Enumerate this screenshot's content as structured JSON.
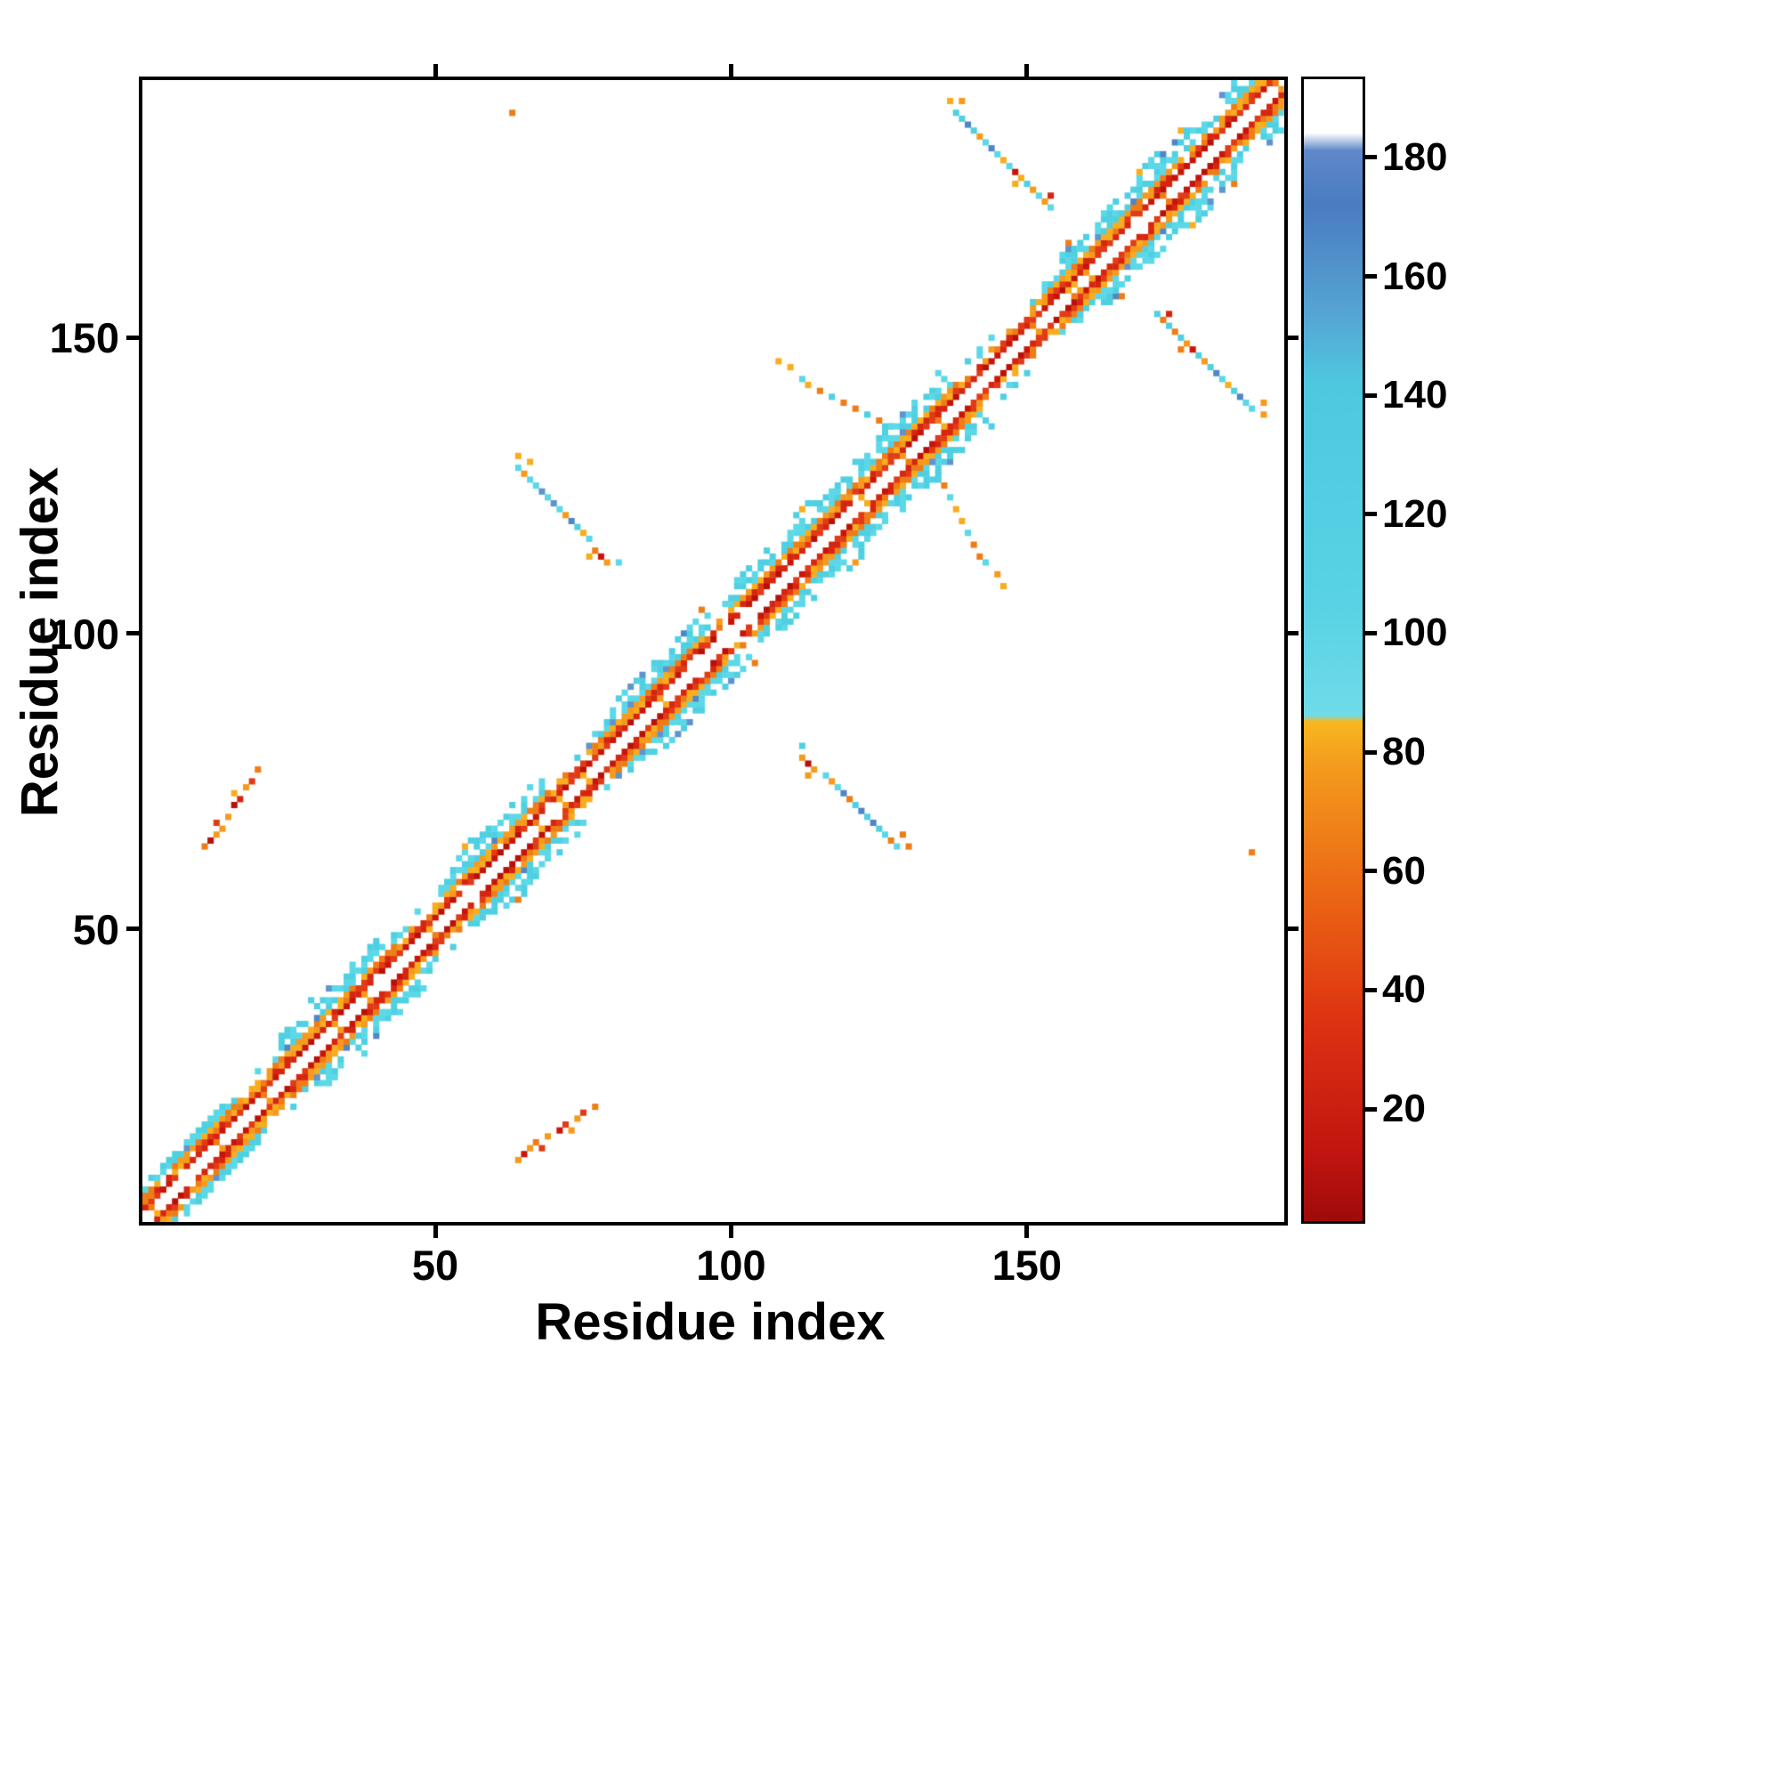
{
  "figure": {
    "background": "#ffffff"
  },
  "axes": {
    "x": {
      "label": "Residue index",
      "min": 1,
      "max": 193,
      "ticks": [
        50,
        100,
        150
      ]
    },
    "y": {
      "label": "Residue index",
      "min": 1,
      "max": 193,
      "ticks": [
        50,
        100,
        150
      ]
    }
  },
  "colorbar": {
    "min": 1,
    "max": 193,
    "ticks": [
      20,
      40,
      60,
      80,
      100,
      120,
      140,
      160,
      180
    ],
    "stops": [
      [
        1,
        "#9f0a0a"
      ],
      [
        12,
        "#c01410"
      ],
      [
        35,
        "#de3312"
      ],
      [
        58,
        "#ec6b15"
      ],
      [
        78,
        "#f49c1d"
      ],
      [
        85,
        "#f8b71f"
      ],
      [
        86,
        "#6fdbe9"
      ],
      [
        105,
        "#58d2e4"
      ],
      [
        142,
        "#4ec8df"
      ],
      [
        154,
        "#55a3d3"
      ],
      [
        172,
        "#4a7cc1"
      ],
      [
        181,
        "#5f88c9"
      ],
      [
        184,
        "#ffffff"
      ],
      [
        193,
        "#ffffff"
      ]
    ]
  },
  "palette": {
    "red": [
      "#e23a15",
      "#d6250f"
    ],
    "darkred": [
      "#b80f07",
      "#c81408"
    ],
    "orange": [
      "#ef7c15",
      "#f59a1c",
      "#f8ad1e"
    ],
    "cyan": [
      "#5bd8e8",
      "#4ed0e2"
    ],
    "blue": [
      "#4f86c6",
      "#5e93cf"
    ],
    "white": "#ffffff"
  },
  "chart_data": {
    "type": "heatmap",
    "title": "",
    "xlabel": "Residue index",
    "ylabel": "Residue index",
    "x_range": [
      1,
      193
    ],
    "y_range": [
      1,
      193
    ],
    "n_residues": 193,
    "symmetric": true,
    "grid": false,
    "legend": "colorbar-right",
    "seed": 42,
    "diagonal_band": {
      "description": "near-diagonal contact band: |i-j|=2-3 red, 3-4 orange, 5-6 cyan; wider cyan flanks in bulge regions; diagonal itself white",
      "bulges": [
        [
          24,
          40
        ],
        [
          52,
          68
        ],
        [
          80,
          96
        ],
        [
          100,
          136
        ],
        [
          156,
          178
        ],
        [
          183,
          191
        ]
      ],
      "thin": [
        [
          18,
          22
        ],
        [
          44,
          50
        ],
        [
          70,
          76
        ],
        [
          97,
          99
        ],
        [
          138,
          150
        ]
      ]
    },
    "clusters": [
      {
        "name": "parallel-contact-11-21-vs-64-77",
        "points": [
          [
            11,
            64,
            "orange"
          ],
          [
            12,
            65,
            "darkred"
          ],
          [
            13,
            66,
            "orange"
          ],
          [
            13,
            68,
            "red"
          ],
          [
            14,
            67,
            "orange"
          ],
          [
            15,
            69,
            "orange"
          ],
          [
            16,
            71,
            "darkred"
          ],
          [
            16,
            73,
            "orange"
          ],
          [
            17,
            72,
            "red"
          ],
          [
            18,
            74,
            "orange"
          ],
          [
            19,
            75,
            "red"
          ],
          [
            20,
            77,
            "orange"
          ]
        ]
      },
      {
        "name": "antiparallel-64-81-vs-111-130",
        "points": [
          [
            64,
            130,
            "orange"
          ],
          [
            64,
            128,
            "cyan"
          ],
          [
            65,
            127,
            "orange"
          ],
          [
            66,
            129,
            "orange"
          ],
          [
            66,
            126,
            "cyan"
          ],
          [
            67,
            125,
            "cyan"
          ],
          [
            68,
            124,
            "blue"
          ],
          [
            69,
            123,
            "cyan"
          ],
          [
            70,
            122,
            "blue"
          ],
          [
            71,
            121,
            "cyan"
          ],
          [
            72,
            120,
            "orange"
          ],
          [
            73,
            119,
            "blue"
          ],
          [
            74,
            118,
            "cyan"
          ],
          [
            75,
            117,
            "orange"
          ],
          [
            76,
            116,
            "cyan"
          ],
          [
            76,
            113,
            "orange"
          ],
          [
            77,
            114,
            "orange"
          ],
          [
            78,
            113,
            "darkred"
          ],
          [
            79,
            112,
            "orange"
          ],
          [
            81,
            112,
            "cyan"
          ]
        ]
      },
      {
        "name": "arc-108-129-vs-134-147",
        "points": [
          [
            108,
            146,
            "orange"
          ],
          [
            110,
            145,
            "orange"
          ],
          [
            112,
            143,
            "cyan"
          ],
          [
            113,
            142,
            "orange"
          ],
          [
            115,
            141,
            "orange"
          ],
          [
            117,
            140,
            "cyan"
          ],
          [
            119,
            139,
            "orange"
          ],
          [
            121,
            138,
            "orange"
          ],
          [
            123,
            137,
            "cyan"
          ],
          [
            125,
            136,
            "orange"
          ],
          [
            127,
            135,
            "cyan"
          ],
          [
            129,
            134,
            "blue"
          ]
        ]
      },
      {
        "name": "antiparallel-137-154-vs-172-190",
        "points": [
          [
            137,
            190,
            "orange"
          ],
          [
            138,
            188,
            "cyan"
          ],
          [
            139,
            187,
            "cyan"
          ],
          [
            139,
            190,
            "orange"
          ],
          [
            140,
            186,
            "blue"
          ],
          [
            141,
            185,
            "cyan"
          ],
          [
            142,
            184,
            "orange"
          ],
          [
            143,
            183,
            "cyan"
          ],
          [
            144,
            182,
            "blue"
          ],
          [
            145,
            181,
            "cyan"
          ],
          [
            146,
            180,
            "orange"
          ],
          [
            147,
            179,
            "cyan"
          ],
          [
            148,
            178,
            "darkred"
          ],
          [
            148,
            176,
            "orange"
          ],
          [
            149,
            177,
            "orange"
          ],
          [
            150,
            176,
            "cyan"
          ],
          [
            151,
            175,
            "orange"
          ],
          [
            152,
            174,
            "cyan"
          ],
          [
            153,
            173,
            "orange"
          ],
          [
            154,
            172,
            "cyan"
          ],
          [
            154,
            174,
            "red"
          ]
        ]
      },
      {
        "name": "isolated-contact-63-188",
        "points": [
          [
            63,
            188,
            "orange"
          ]
        ]
      }
    ]
  }
}
